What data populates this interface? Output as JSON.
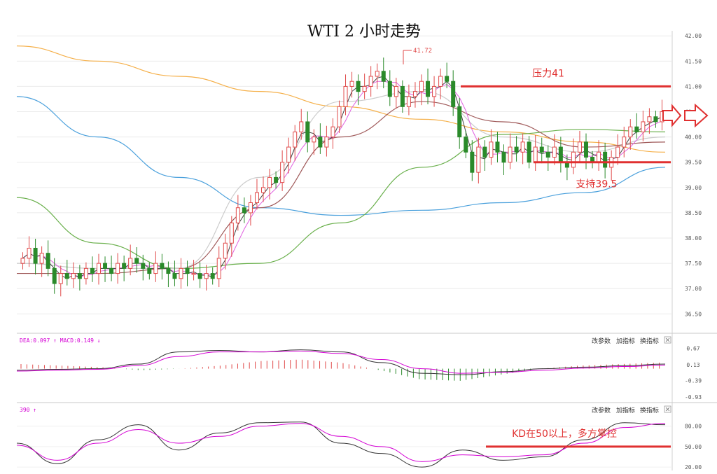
{
  "chart_data": {
    "type": "candlestick",
    "title": "WTI 2 小时走势",
    "price_panel": {
      "ylim": [
        36.2,
        42.1
      ],
      "y_ticks": [
        "42.00",
        "41.50",
        "41.00",
        "40.50",
        "40.00",
        "39.50",
        "39.00",
        "38.50",
        "38.00",
        "37.50",
        "37.00",
        "36.50"
      ],
      "peak_label": "41.72",
      "grid": true,
      "candles_close": [
        37.6,
        37.8,
        37.5,
        37.7,
        37.4,
        37.1,
        37.3,
        37.2,
        37.3,
        37.2,
        37.4,
        37.3,
        37.5,
        37.4,
        37.3,
        37.5,
        37.4,
        37.6,
        37.5,
        37.4,
        37.3,
        37.5,
        37.4,
        37.3,
        37.2,
        37.4,
        37.3,
        37.3,
        37.2,
        37.3,
        37.2,
        37.6,
        37.9,
        38.3,
        38.6,
        38.5,
        38.7,
        38.9,
        39.0,
        39.2,
        39.1,
        39.5,
        39.8,
        40.1,
        40.3,
        39.9,
        40.0,
        39.8,
        40.0,
        40.2,
        40.6,
        41.0,
        41.1,
        40.9,
        41.0,
        41.2,
        41.3,
        41.1,
        40.8,
        41.0,
        40.6,
        40.8,
        40.9,
        41.1,
        40.8,
        41.0,
        41.2,
        41.1,
        40.6,
        40.0,
        39.7,
        39.3,
        39.8,
        39.6,
        39.9,
        39.7,
        39.5,
        39.8,
        39.7,
        39.9,
        39.5,
        39.8,
        39.7,
        39.6,
        39.8,
        39.5,
        39.4,
        39.7,
        39.9,
        39.6,
        39.5,
        39.7,
        39.4,
        39.6,
        39.8,
        40.0,
        40.2,
        40.1,
        40.3,
        40.4,
        40.3,
        40.5
      ],
      "ma_lines": [
        {
          "color": "#f5b04a",
          "values": [
            41.8,
            41.5,
            41.2,
            40.9,
            40.6,
            40.35,
            40.1,
            39.9,
            39.7
          ]
        },
        {
          "color": "#4aa0dc",
          "values": [
            40.8,
            40.0,
            39.2,
            38.6,
            38.45,
            38.55,
            38.7,
            38.9,
            39.4
          ]
        },
        {
          "color": "#6ab04c",
          "values": [
            38.8,
            37.9,
            37.4,
            37.5,
            38.3,
            39.4,
            40.05,
            40.15,
            40.1
          ]
        },
        {
          "color": "#a05a5a",
          "values": [
            37.3,
            37.3,
            37.4,
            38.6,
            40.0,
            40.7,
            40.3,
            39.8,
            39.9
          ]
        },
        {
          "color": "#cccccc",
          "values": [
            37.5,
            37.4,
            37.4,
            39.2,
            40.7,
            40.9,
            40.0,
            39.7,
            40.0
          ]
        }
      ],
      "annotations": [
        {
          "label": "压力41",
          "value": 41.0
        },
        {
          "label": "支持39.5",
          "value": 39.5
        }
      ]
    },
    "macd_panel": {
      "header": "DEA:0.097 ↑ MACD:0.149 ↓",
      "y_ticks": [
        "0.67",
        "0.13",
        "-0.39",
        "-0.93"
      ],
      "ylim": [
        -1.0,
        0.75
      ],
      "dif": [
        -0.05,
        -0.02,
        0.0,
        0.15,
        0.55,
        0.6,
        0.55,
        0.62,
        0.55,
        0.2,
        -0.15,
        -0.2,
        -0.1,
        0.0,
        0.05,
        0.1,
        0.15
      ],
      "dea": [
        -0.08,
        -0.05,
        -0.02,
        0.1,
        0.4,
        0.55,
        0.55,
        0.58,
        0.5,
        0.3,
        0.0,
        -0.15,
        -0.12,
        -0.05,
        0.02,
        0.07,
        0.12
      ],
      "hist": [
        0.15,
        0.1,
        0.05,
        -0.05,
        0.0,
        0.1,
        0.25,
        0.3,
        0.2,
        -0.05,
        -0.35,
        -0.4,
        -0.2,
        0.0,
        0.1,
        0.15,
        0.2
      ]
    },
    "kd_panel": {
      "header": "390 ↑",
      "y_ticks": [
        "80.00",
        "50.00",
        "20.00"
      ],
      "ylim": [
        15,
        95
      ],
      "k": [
        55,
        25,
        60,
        82,
        45,
        70,
        85,
        86,
        55,
        40,
        20,
        45,
        30,
        35,
        60,
        85,
        82
      ],
      "d": [
        52,
        30,
        55,
        75,
        55,
        65,
        80,
        84,
        65,
        50,
        28,
        38,
        35,
        38,
        55,
        78,
        84
      ],
      "level_line": 50,
      "annotation": "KD在50以上，多方掌控"
    },
    "panel_buttons": [
      "改参数",
      "加指标",
      "换指标"
    ],
    "colors": {
      "up": "#e04a4a",
      "down": "#2a8a2a",
      "annotation": "#e03030",
      "macd_dea": "#d400d4"
    }
  }
}
